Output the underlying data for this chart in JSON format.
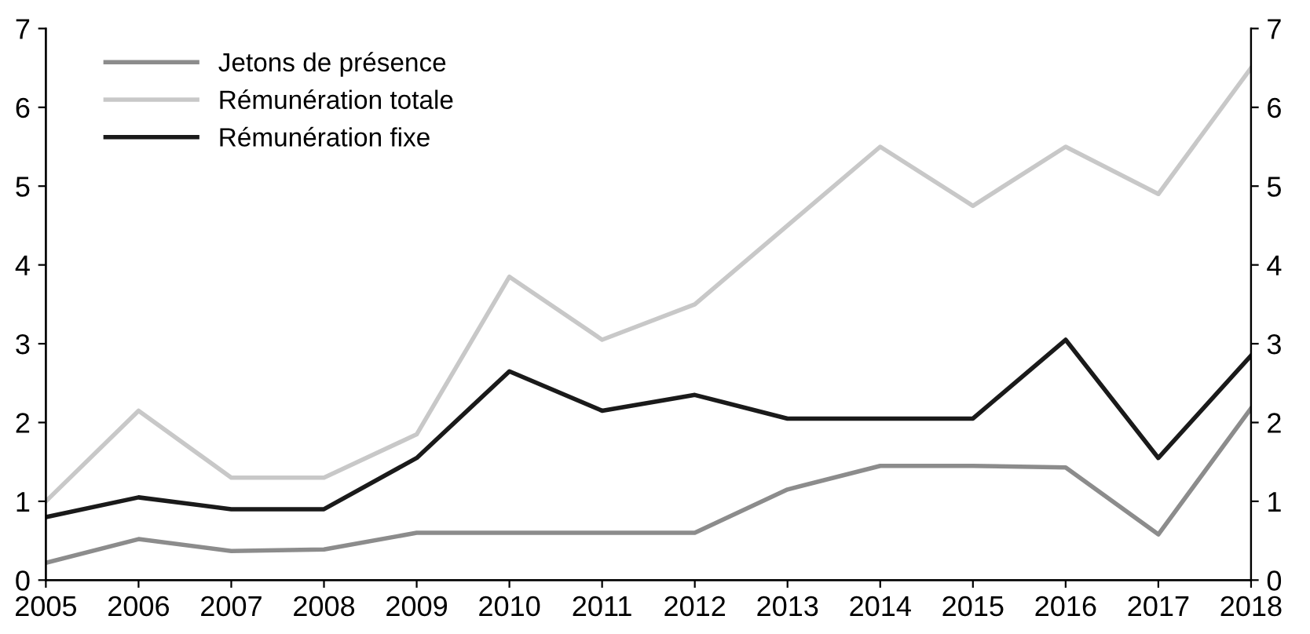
{
  "chart_data": {
    "type": "line",
    "x": [
      2005,
      2006,
      2007,
      2008,
      2009,
      2010,
      2011,
      2012,
      2013,
      2014,
      2015,
      2016,
      2017,
      2018
    ],
    "series": [
      {
        "name": "Jetons de présence",
        "color": "#8c8c8c",
        "values": [
          0.22,
          0.52,
          0.37,
          0.39,
          0.6,
          0.6,
          0.6,
          0.6,
          1.15,
          1.45,
          1.45,
          1.43,
          0.58,
          2.18
        ]
      },
      {
        "name": "Rémunération totale",
        "color": "#c8c8c8",
        "values": [
          1.0,
          2.15,
          1.3,
          1.3,
          1.85,
          3.85,
          3.05,
          3.5,
          4.5,
          5.5,
          4.75,
          5.5,
          4.9,
          6.5
        ]
      },
      {
        "name": "Rémunération fixe",
        "color": "#1a1a1a",
        "values": [
          0.8,
          1.05,
          0.9,
          0.9,
          1.55,
          2.65,
          2.15,
          2.35,
          2.05,
          2.05,
          2.05,
          3.05,
          1.55,
          2.85
        ]
      }
    ],
    "xlim": [
      2005,
      2018
    ],
    "xticks": [
      2005,
      2006,
      2007,
      2008,
      2009,
      2010,
      2011,
      2012,
      2013,
      2014,
      2015,
      2016,
      2017,
      2018
    ],
    "ylim": [
      0,
      7
    ],
    "yticks": [
      0,
      1,
      2,
      3,
      4,
      5,
      6,
      7
    ],
    "y2lim": [
      0,
      7
    ],
    "y2ticks": [
      0,
      1,
      2,
      3,
      4,
      5,
      6,
      7
    ],
    "legend": "top left",
    "grid": false,
    "marker": "none",
    "line_style": "solid"
  }
}
